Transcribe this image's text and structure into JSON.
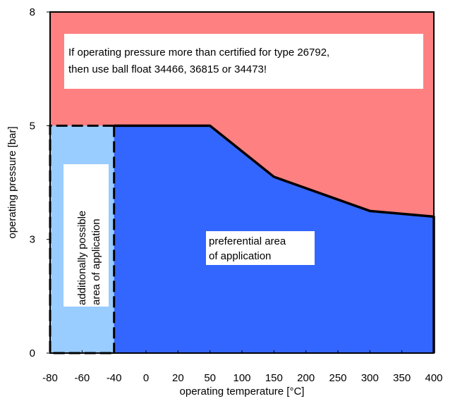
{
  "chart_data": {
    "type": "area",
    "xlabel": "operating temperature [°C]",
    "ylabel": "operating pressure [bar]",
    "x_ticks": [
      -80,
      -60,
      -40,
      0,
      20,
      50,
      100,
      150,
      200,
      250,
      300,
      350,
      400
    ],
    "y_ticks": [
      0,
      3,
      5,
      8
    ],
    "x_tick_labels": [
      "-80",
      "-60",
      "-40",
      "0",
      "20",
      "50",
      "100",
      "150",
      "200",
      "250",
      "300",
      "350",
      "400"
    ],
    "y_tick_labels": [
      "0",
      "3",
      "5",
      "8"
    ],
    "ylim": [
      0,
      8
    ],
    "grid": false,
    "boundary_curve": {
      "x": [
        -40,
        50,
        150,
        250,
        300,
        400
      ],
      "y": [
        5,
        5,
        4.1,
        3.7,
        3.5,
        3.4
      ]
    },
    "regions": [
      {
        "name": "upper",
        "color": "#ff8080"
      },
      {
        "name": "preferential",
        "color": "#3366ff"
      },
      {
        "name": "additional",
        "color": "#99ccff",
        "x_range": [
          -80,
          -40
        ],
        "y_top": 5
      }
    ],
    "annotations": {
      "upper_note_line1": "If operating pressure more than certified for type 26792,",
      "upper_note_line2": "then use ball float 34466, 36815 or 34473!",
      "preferential_line1": "preferential area",
      "preferential_line2": "of application",
      "additional_line1": "additionally possible",
      "additional_line2": "area of application"
    }
  }
}
